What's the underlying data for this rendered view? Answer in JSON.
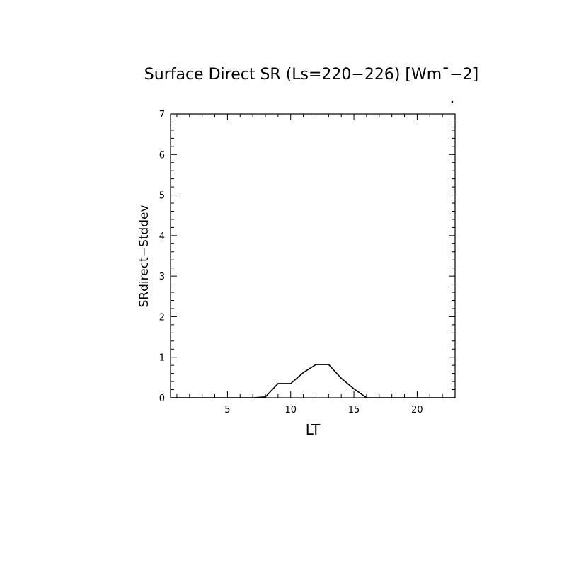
{
  "chart_data": {
    "type": "line",
    "title": "Surface Direct SR (Ls=220−226) [Wm⁻−²]",
    "title_parts": {
      "main": "Surface Direct SR (Ls=220−226) [Wm",
      "caret": "¯",
      "exp": "−2]"
    },
    "xlabel": "LT",
    "ylabel": "SRdirect−Stddev",
    "xlim": [
      0.5,
      23.0
    ],
    "ylim": [
      0,
      7
    ],
    "xticks": [
      5,
      10,
      15,
      20
    ],
    "yticks": [
      0,
      1,
      2,
      3,
      4,
      5,
      6,
      7
    ],
    "grid": false,
    "series": [
      {
        "x": [
          0.5,
          1,
          2,
          3,
          4,
          5,
          6,
          7,
          8,
          9,
          10,
          11,
          12,
          13,
          14,
          15,
          16,
          17,
          18,
          19,
          20,
          21,
          22,
          23
        ],
        "y": [
          0,
          0,
          0,
          0,
          0,
          0,
          0,
          0,
          0.02,
          0.35,
          0.35,
          0.62,
          0.82,
          0.82,
          0.48,
          0.22,
          0,
          0,
          0,
          0,
          0,
          0,
          0,
          0
        ]
      }
    ]
  },
  "colors": {
    "line": "#000000",
    "background": "#ffffff"
  }
}
